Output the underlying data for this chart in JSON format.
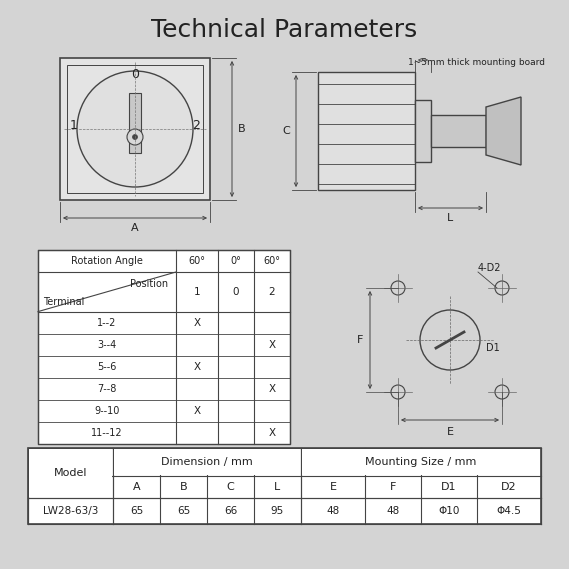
{
  "title": "Technical Parameters",
  "bg_color": "#d4d4d4",
  "fg_color": "#222222",
  "line_color": "#444444",
  "white": "#ffffff",
  "title_fontsize": 18,
  "body_fontsize": 7.5,
  "rotation_table": {
    "rows": [
      [
        "1--2",
        "X",
        "",
        ""
      ],
      [
        "3--4",
        "",
        "",
        "X"
      ],
      [
        "5--6",
        "X",
        "",
        ""
      ],
      [
        "7--8",
        "",
        "",
        "X"
      ],
      [
        "9--10",
        "X",
        "",
        ""
      ],
      [
        "11--12",
        "",
        "",
        "X"
      ]
    ]
  },
  "dim_table": {
    "model": "LW28-63/3",
    "dim_header": "Dimension / mm",
    "mount_header": "Mounting Size / mm",
    "sub_cols": [
      "A",
      "B",
      "C",
      "L",
      "E",
      "F",
      "D1",
      "D2"
    ],
    "values": [
      "65",
      "65",
      "66",
      "95",
      "48",
      "48",
      "Φ10",
      "Φ4.5"
    ]
  },
  "side_view_note": "1~5mm thick mounting board",
  "mounting_diagram": {
    "label_4D2": "4-D2",
    "label_D1": "D1",
    "label_E": "E",
    "label_F": "F"
  }
}
